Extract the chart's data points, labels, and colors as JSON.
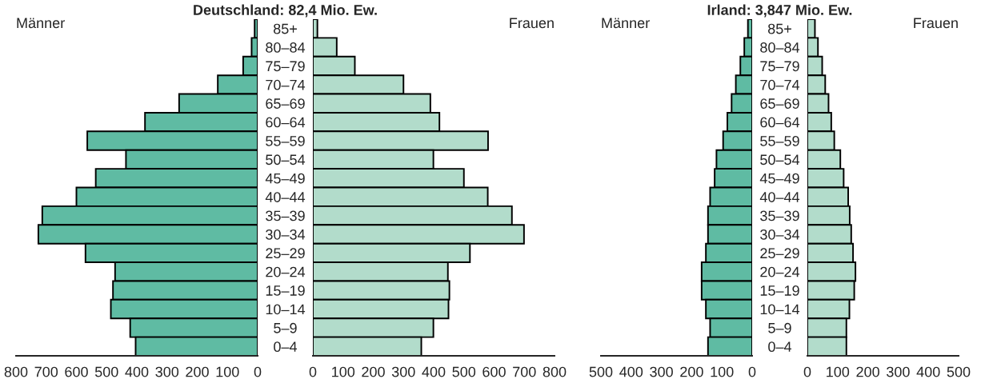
{
  "chart_data": [
    {
      "type": "bar",
      "orientation": "horizontal",
      "title": "Deutschland: 82,4 Mio. Ew.",
      "annotations": [
        "Männer"
      ],
      "categories": [
        "85+",
        "80–84",
        "75–79",
        "70–74",
        "65–69",
        "60–64",
        "55–59",
        "50–54",
        "45–49",
        "40–44",
        "35–39",
        "30–34",
        "25–29",
        "20–24",
        "15–19",
        "10–14",
        "5–9",
        "0–4"
      ],
      "values": [
        10,
        20,
        48,
        132,
        260,
        373,
        564,
        436,
        536,
        600,
        713,
        726,
        570,
        472,
        479,
        486,
        422,
        404
      ],
      "color": "#5fbba3",
      "xlim": [
        800,
        0
      ],
      "xticks": [
        800,
        700,
        600,
        500,
        400,
        300,
        200,
        100,
        0
      ]
    },
    {
      "type": "bar",
      "orientation": "horizontal",
      "annotations": [
        "Frauen"
      ],
      "categories": [
        null,
        null,
        null,
        null,
        null,
        null,
        null,
        null,
        null,
        null,
        null,
        null,
        null,
        null,
        null,
        null,
        null,
        null
      ],
      "values": [
        15,
        79,
        139,
        300,
        389,
        419,
        580,
        399,
        500,
        579,
        659,
        699,
        520,
        447,
        452,
        449,
        399,
        359
      ],
      "color": "#b2dccb",
      "xlim": [
        0,
        800
      ],
      "xticks": [
        0,
        100,
        200,
        300,
        400,
        500,
        600,
        700,
        800
      ]
    },
    {
      "type": "bar",
      "orientation": "horizontal",
      "title": "Irland: 3,847 Mio. Ew.",
      "annotations": [
        "Männer"
      ],
      "categories": [
        "85+",
        "80–84",
        "75–79",
        "70–74",
        "65–69",
        "60–64",
        "55–59",
        "50–54",
        "45–49",
        "40–44",
        "35–39",
        "30–34",
        "25–29",
        "20–24",
        "15–19",
        "10–14",
        "5–9",
        "0–4"
      ],
      "values": [
        14,
        26,
        39,
        54,
        68,
        82,
        96,
        118,
        124,
        139,
        146,
        146,
        153,
        167,
        167,
        153,
        139,
        146
      ],
      "color": "#5fbba3",
      "xlim": [
        500,
        0
      ],
      "xticks": [
        500,
        400,
        300,
        200,
        100,
        0
      ]
    },
    {
      "type": "bar",
      "orientation": "horizontal",
      "annotations": [
        "Frauen"
      ],
      "categories": [
        null,
        null,
        null,
        null,
        null,
        null,
        null,
        null,
        null,
        null,
        null,
        null,
        null,
        null,
        null,
        null,
        null,
        null
      ],
      "values": [
        25,
        35,
        49,
        59,
        70,
        79,
        89,
        109,
        120,
        135,
        140,
        145,
        151,
        159,
        155,
        139,
        129,
        129
      ],
      "color": "#b2dccb",
      "xlim": [
        0,
        500
      ],
      "xticks": [
        0,
        100,
        200,
        300,
        400,
        500
      ]
    }
  ]
}
